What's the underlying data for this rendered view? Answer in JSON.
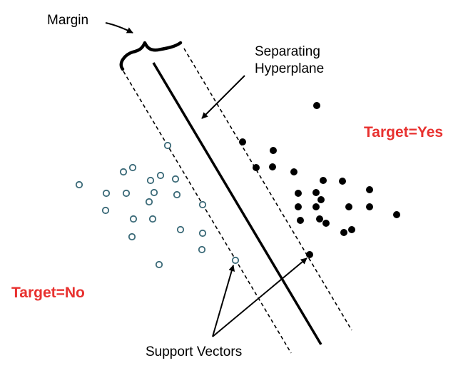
{
  "labels": {
    "margin": "Margin",
    "separating_line1": "Separating",
    "separating_line2": "Hyperplane",
    "target_yes": "Target=Yes",
    "target_no": "Target=No",
    "support_vectors": "Support Vectors"
  },
  "colors": {
    "target_label": "#e8312f",
    "lines": "#000000"
  }
}
